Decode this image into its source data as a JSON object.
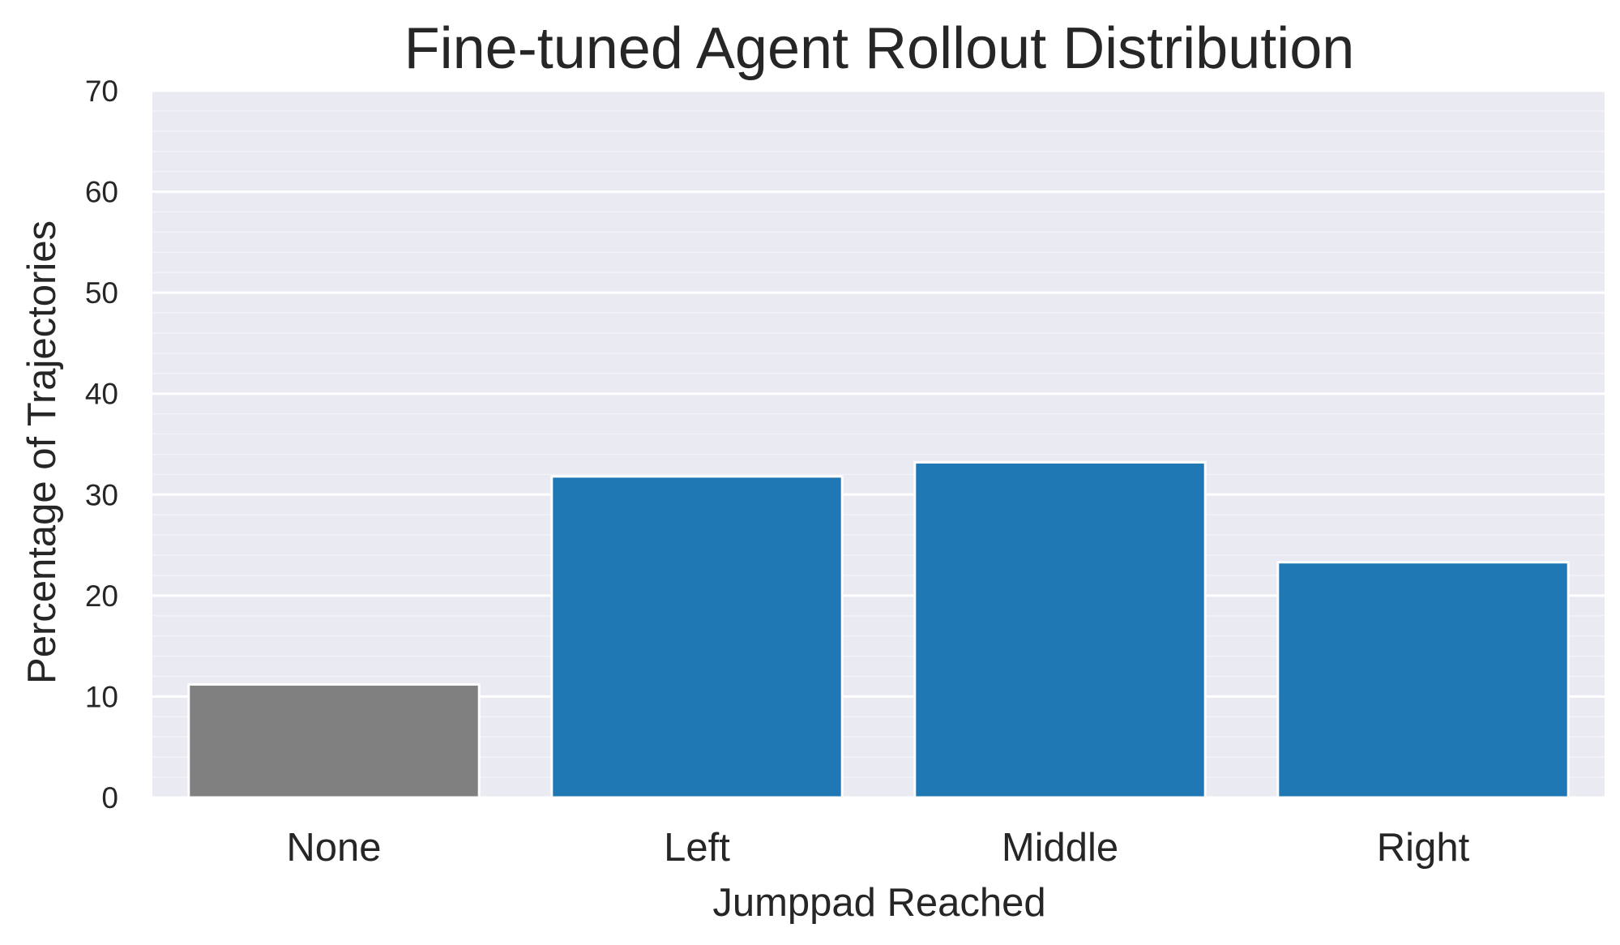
{
  "chart_data": {
    "type": "bar",
    "title": "Fine-tuned Agent Rollout Distribution",
    "xlabel": "Jumppad Reached",
    "ylabel": "Percentage of Trajectories",
    "categories": [
      "None",
      "Left",
      "Middle",
      "Right"
    ],
    "values": [
      11.2,
      31.8,
      33.2,
      23.3
    ],
    "bar_colors": [
      "#808080",
      "#1f77b4",
      "#1f77b4",
      "#1f77b4"
    ],
    "ylim": [
      0,
      70
    ],
    "yticks": [
      0,
      10,
      20,
      30,
      40,
      50,
      60,
      70
    ],
    "grid": true,
    "background_color": "#eaeaf2",
    "grid_color": "#ffffff"
  }
}
